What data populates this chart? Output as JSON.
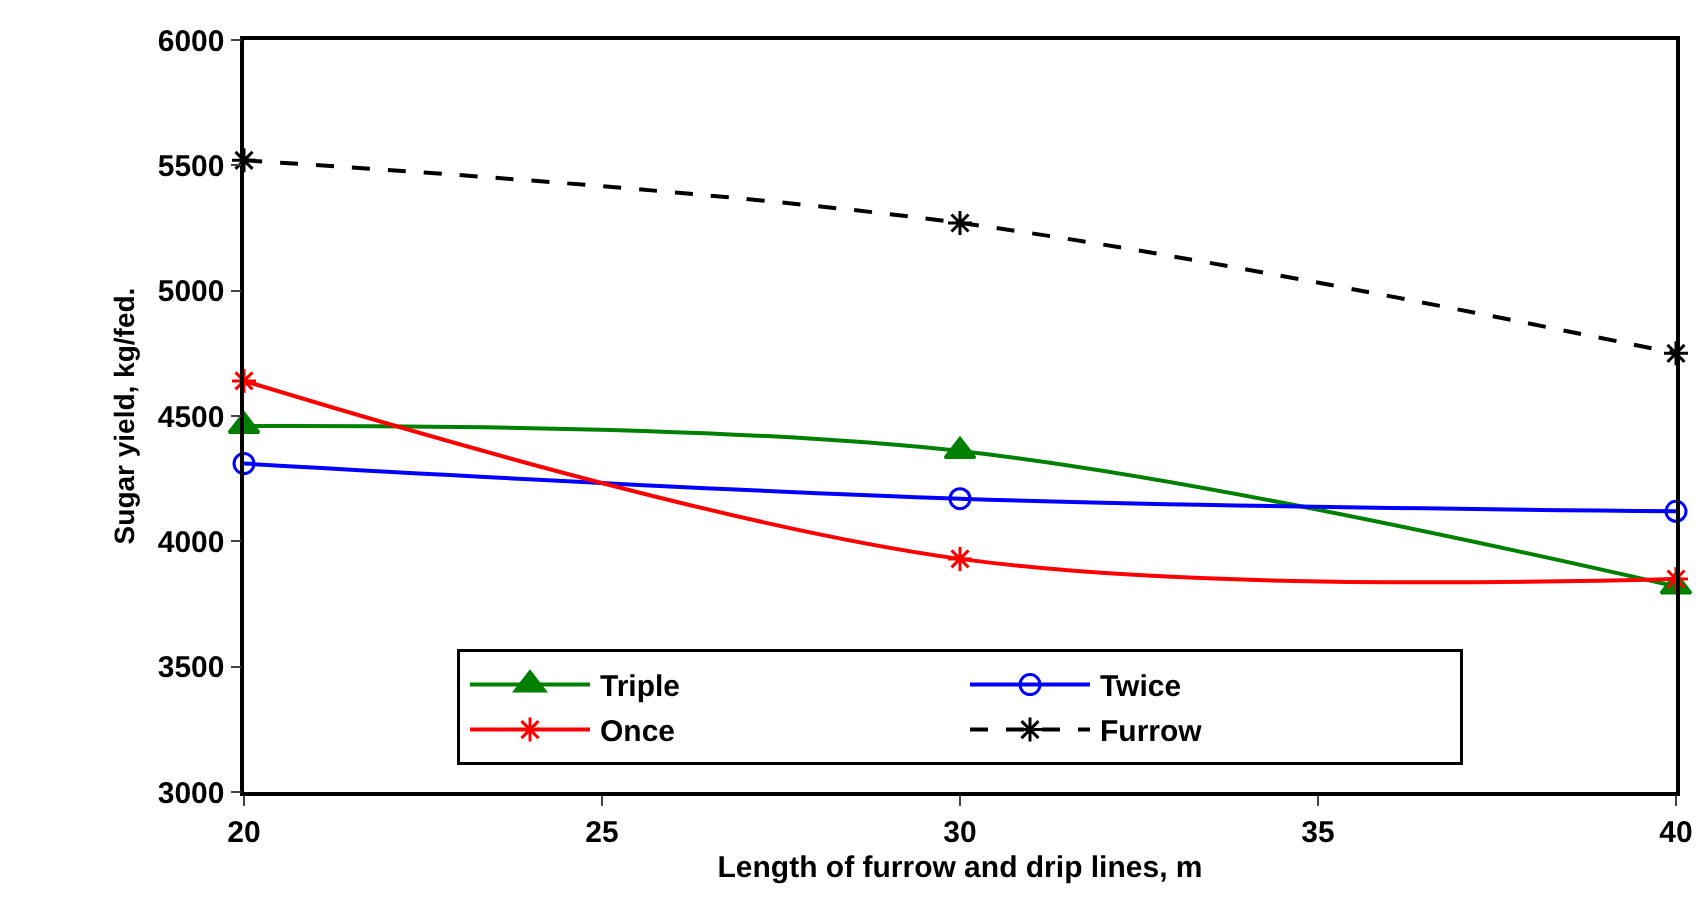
{
  "chart_data": {
    "type": "line",
    "xlabel": "Length of furrow and drip lines, m",
    "ylabel": "Sugar yield, kg/fed.",
    "x": [
      20,
      30,
      40
    ],
    "xlim": [
      20,
      40
    ],
    "xticks": [
      20,
      25,
      30,
      35,
      40
    ],
    "ylim": [
      3000,
      6000
    ],
    "yticks": [
      3000,
      3500,
      4000,
      4500,
      5000,
      5500,
      6000
    ],
    "grid": false,
    "legend": "bottom",
    "series": [
      {
        "name": "Triple",
        "color": "#008000",
        "values": [
          4460,
          4360,
          3820
        ],
        "marker": "triangle",
        "line_style": "solid"
      },
      {
        "name": "Twice",
        "color": "#0000ff",
        "values": [
          4310,
          4170,
          4120
        ],
        "marker": "circle",
        "line_style": "solid"
      },
      {
        "name": "Once",
        "color": "#ff0000",
        "values": [
          4640,
          3930,
          3850
        ],
        "marker": "cross",
        "line_style": "solid"
      },
      {
        "name": "Furrow",
        "color": "#000000",
        "values": [
          5520,
          5270,
          4750
        ],
        "marker": "cross",
        "line_style": "dashed"
      }
    ]
  }
}
